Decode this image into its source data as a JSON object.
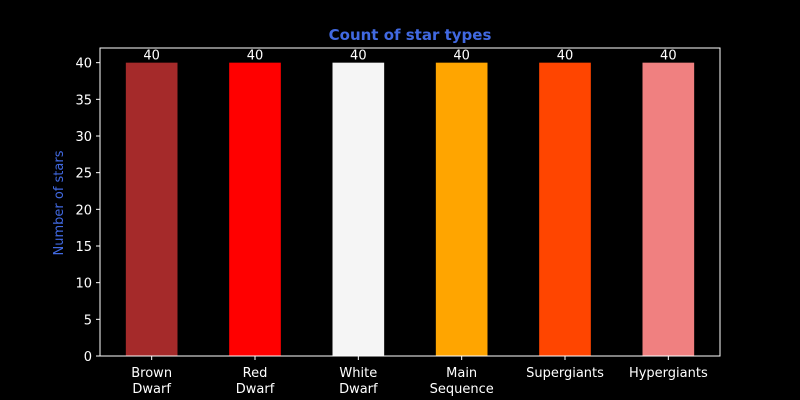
{
  "chart_data": {
    "type": "bar",
    "title": "Count of star types",
    "xlabel": "",
    "ylabel": "Number of stars",
    "ylim": [
      0,
      42
    ],
    "yticks": [
      0,
      5,
      10,
      15,
      20,
      25,
      30,
      35,
      40
    ],
    "categories": [
      [
        "Brown",
        "Dwarf"
      ],
      [
        "Red",
        "Dwarf"
      ],
      [
        "White",
        "Dwarf"
      ],
      [
        "Main",
        "Sequence"
      ],
      [
        "Supergiants"
      ],
      [
        "Hypergiants"
      ]
    ],
    "values": [
      40,
      40,
      40,
      40,
      40,
      40
    ],
    "data_labels": [
      "40",
      "40",
      "40",
      "40",
      "40",
      "40"
    ],
    "bar_colors": [
      "#a52a2a",
      "#ff0000",
      "#f5f5f5",
      "#ffa500",
      "#ff4500",
      "#f08080"
    ],
    "grid": false,
    "legend": "none"
  },
  "colors": {
    "background": "#000000",
    "title": "#4169e1",
    "ylabel": "#4169e1",
    "axis": "#ffffff",
    "tick_text": "#ffffff",
    "data_label": "#ffffff"
  }
}
